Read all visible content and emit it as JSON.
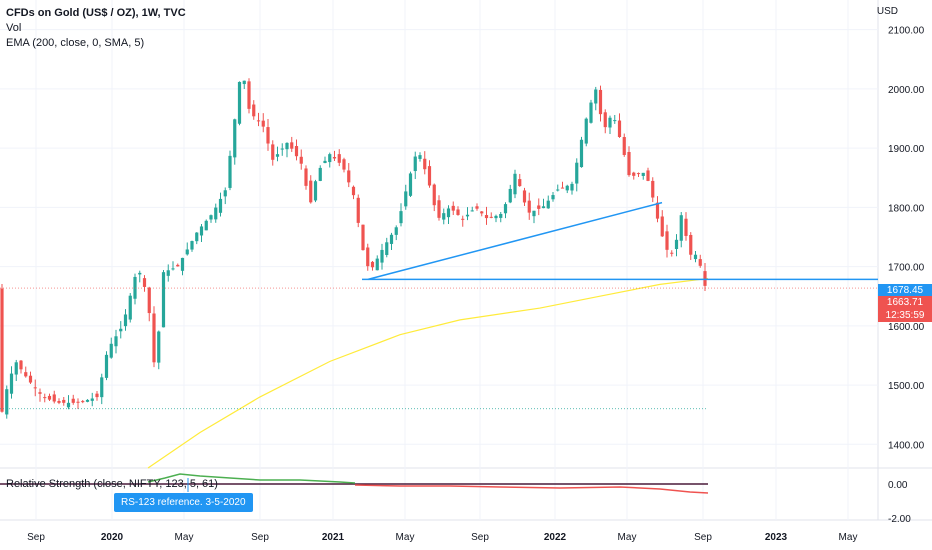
{
  "chart_data": {
    "type": "candlestick",
    "title": "CFDs on Gold (US$ / OZ), 1W, TVC",
    "indicators": [
      "Vol",
      "EMA (200, close, 0, SMA, 5)"
    ],
    "currency": "USD",
    "ylim": [
      1360,
      2150
    ],
    "y_ticks": [
      "2100.00",
      "2000.00",
      "1900.00",
      "1800.00",
      "1700.00",
      "1600.00",
      "1500.00",
      "1400.00"
    ],
    "x_ticks": [
      "Sep",
      "2020",
      "May",
      "Sep",
      "2021",
      "May",
      "Sep",
      "2022",
      "May",
      "Sep",
      "2023",
      "May"
    ],
    "key_prices": [
      {
        "label": "1678.45",
        "value": 1678.45,
        "color": "#2196f3"
      },
      {
        "label": "1663.71",
        "value": 1663.71,
        "color": "#ef5350"
      }
    ],
    "countdown": "12:35:59",
    "horizontal_lines": [
      1678.45,
      1460
    ],
    "pane2": {
      "label": "Relative Strength (close, NIFTY, 123, 5, 61)",
      "ticks": [
        "0.00",
        "-2.00"
      ],
      "annotation": "RS-123 reference. 3-5-2020"
    }
  }
}
